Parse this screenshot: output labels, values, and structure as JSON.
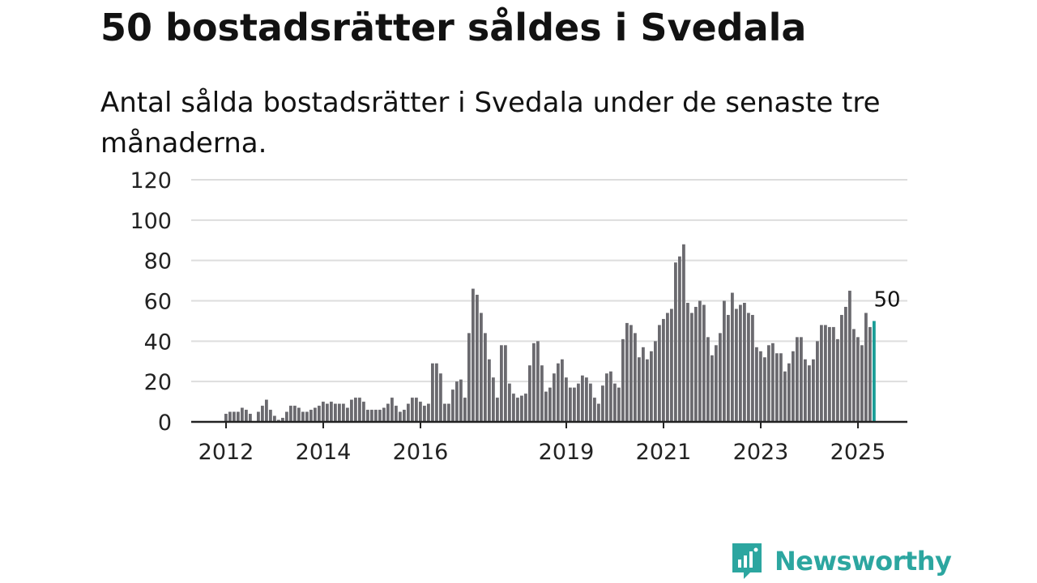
{
  "title": "50 bostadsrätter såldes i Svedala",
  "subtitle": "Antal sålda bostadsrätter i Svedala under de senaste tre månaderna.",
  "brand": {
    "name": "Newsworthy",
    "icon": "newsworthy-logo-icon",
    "color": "#2ca6a0"
  },
  "chart_data": {
    "type": "bar",
    "title": "50 bostadsrätter såldes i Svedala",
    "subtitle": "Antal sålda bostadsrätter i Svedala under de senaste tre månaderna.",
    "xlabel": "",
    "ylabel": "",
    "ylim": [
      0,
      120
    ],
    "yticks": [
      0,
      20,
      40,
      60,
      80,
      100,
      120
    ],
    "xticks": [
      "2012",
      "2014",
      "2016",
      "2019",
      "2021",
      "2023",
      "2025"
    ],
    "grid": true,
    "colors": {
      "bars": "#6b6a6f",
      "highlight": "#1a9d96",
      "grid": "#dddddd",
      "axis": "#222222"
    },
    "x": [
      "2012-01",
      "2012-02",
      "2012-03",
      "2012-04",
      "2012-05",
      "2012-06",
      "2012-07",
      "2012-08",
      "2012-09",
      "2012-10",
      "2012-11",
      "2012-12",
      "2013-01",
      "2013-02",
      "2013-03",
      "2013-04",
      "2013-05",
      "2013-06",
      "2013-07",
      "2013-08",
      "2013-09",
      "2013-10",
      "2013-11",
      "2013-12",
      "2014-01",
      "2014-02",
      "2014-03",
      "2014-04",
      "2014-05",
      "2014-06",
      "2014-07",
      "2014-08",
      "2014-09",
      "2014-10",
      "2014-11",
      "2014-12",
      "2015-01",
      "2015-02",
      "2015-03",
      "2015-04",
      "2015-05",
      "2015-06",
      "2015-07",
      "2015-08",
      "2015-09",
      "2015-10",
      "2015-11",
      "2015-12",
      "2016-01",
      "2016-02",
      "2016-03",
      "2016-04",
      "2016-05",
      "2016-06",
      "2016-07",
      "2016-08",
      "2016-09",
      "2016-10",
      "2016-11",
      "2016-12",
      "2017-01",
      "2017-02",
      "2017-03",
      "2017-04",
      "2017-05",
      "2017-06",
      "2017-07",
      "2017-08",
      "2017-09",
      "2017-10",
      "2017-11",
      "2017-12",
      "2018-01",
      "2018-02",
      "2018-03",
      "2018-04",
      "2018-05",
      "2018-06",
      "2018-07",
      "2018-08",
      "2018-09",
      "2018-10",
      "2018-11",
      "2018-12",
      "2019-01",
      "2019-02",
      "2019-03",
      "2019-04",
      "2019-05",
      "2019-06",
      "2019-07",
      "2019-08",
      "2019-09",
      "2019-10",
      "2019-11",
      "2019-12",
      "2020-01",
      "2020-02",
      "2020-03",
      "2020-04",
      "2020-05",
      "2020-06",
      "2020-07",
      "2020-08",
      "2020-09",
      "2020-10",
      "2020-11",
      "2020-12",
      "2021-01",
      "2021-02",
      "2021-03",
      "2021-04",
      "2021-05",
      "2021-06",
      "2021-07",
      "2021-08",
      "2021-09",
      "2021-10",
      "2021-11",
      "2021-12",
      "2022-01",
      "2022-02",
      "2022-03",
      "2022-04",
      "2022-05",
      "2022-06",
      "2022-07",
      "2022-08",
      "2022-09",
      "2022-10",
      "2022-11",
      "2022-12",
      "2023-01",
      "2023-02",
      "2023-03",
      "2023-04",
      "2023-05",
      "2023-06",
      "2023-07",
      "2023-08",
      "2023-09",
      "2023-10",
      "2023-11",
      "2023-12",
      "2024-01",
      "2024-02",
      "2024-03",
      "2024-04",
      "2024-05",
      "2024-06",
      "2024-07",
      "2024-08",
      "2024-09",
      "2024-10",
      "2024-11",
      "2024-12",
      "2025-01",
      "2025-02",
      "2025-03",
      "2025-04",
      "2025-05"
    ],
    "values": [
      4,
      5,
      5,
      5,
      7,
      6,
      4,
      0,
      5,
      8,
      11,
      6,
      3,
      1,
      2,
      5,
      8,
      8,
      7,
      5,
      5,
      6,
      7,
      8,
      10,
      9,
      10,
      9,
      9,
      9,
      7,
      11,
      12,
      12,
      10,
      6,
      6,
      6,
      6,
      7,
      9,
      12,
      8,
      5,
      6,
      9,
      12,
      12,
      10,
      8,
      9,
      29,
      29,
      24,
      9,
      9,
      16,
      20,
      21,
      12,
      44,
      66,
      63,
      54,
      44,
      31,
      22,
      12,
      38,
      38,
      19,
      14,
      12,
      13,
      14,
      28,
      39,
      40,
      28,
      15,
      17,
      24,
      29,
      31,
      22,
      17,
      17,
      19,
      23,
      22,
      19,
      12,
      9,
      18,
      24,
      25,
      19,
      17,
      41,
      49,
      48,
      44,
      32,
      37,
      31,
      35,
      40,
      48,
      51,
      54,
      56,
      79,
      82,
      88,
      59,
      54,
      57,
      60,
      58,
      42,
      33,
      38,
      44,
      60,
      53,
      64,
      56,
      58,
      59,
      54,
      53,
      37,
      35,
      32,
      38,
      39,
      34,
      34,
      25,
      29,
      35,
      42,
      42,
      31,
      28,
      31,
      40,
      48,
      48,
      47,
      47,
      41,
      53,
      57,
      65,
      46,
      42,
      38,
      54,
      47,
      50
    ],
    "highlight": {
      "x": "2025-05",
      "value": 50,
      "label": "50"
    }
  }
}
